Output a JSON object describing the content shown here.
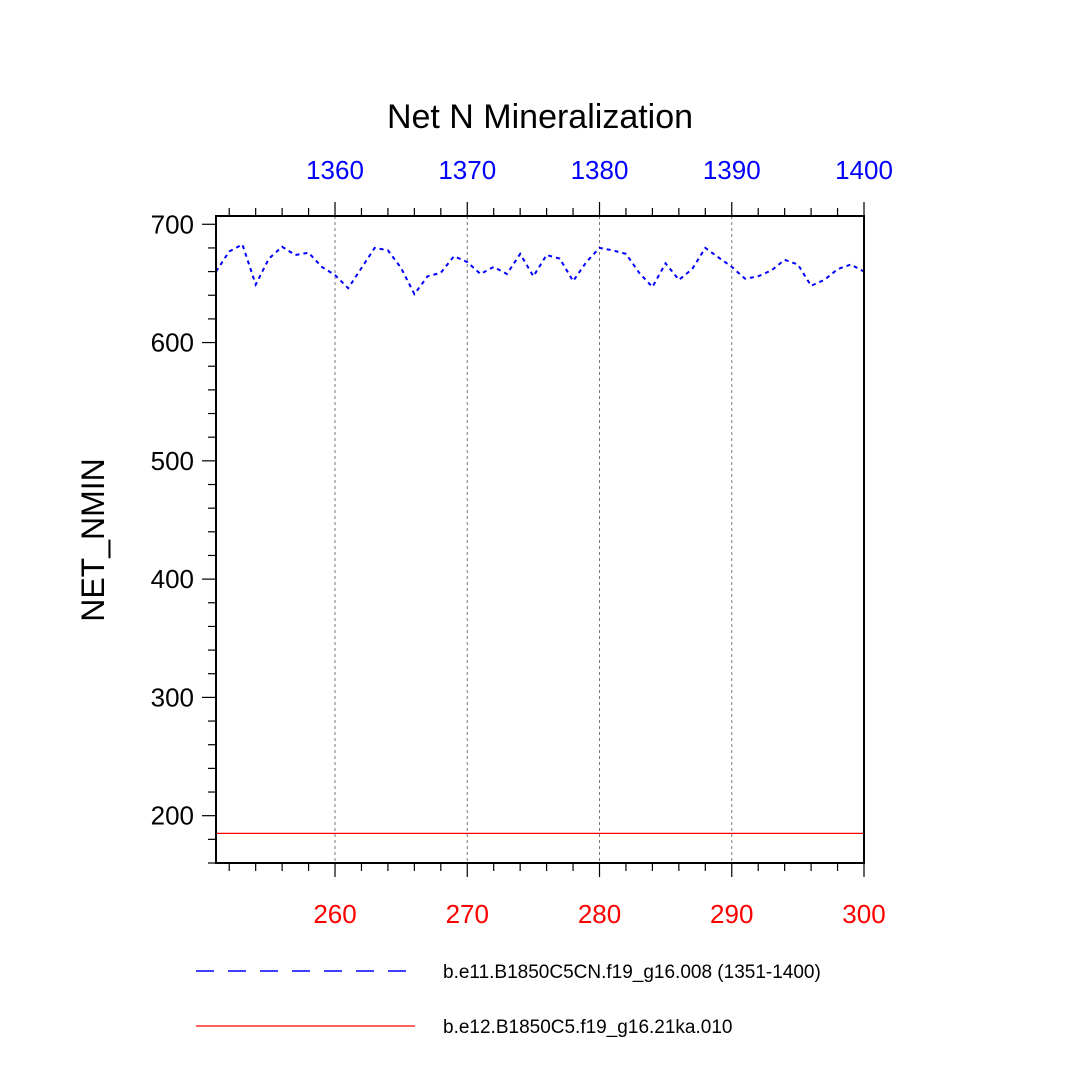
{
  "chart_data": {
    "type": "line",
    "title": "Net N Mineralization",
    "ylabel": "NET_NMIN",
    "xlabel": "",
    "ylim": [
      160,
      707
    ],
    "yticks": [
      200,
      300,
      400,
      500,
      600,
      700
    ],
    "grid": "vertical dashed at major x ticks",
    "bottom_axis": {
      "color": "#ff0000",
      "range": [
        251,
        300
      ],
      "ticks": [
        260,
        270,
        280,
        290,
        300
      ],
      "minor_step": 2
    },
    "top_axis": {
      "color": "#0000ff",
      "range": [
        1351,
        1400
      ],
      "ticks": [
        1360,
        1370,
        1380,
        1390,
        1400
      ]
    },
    "series": [
      {
        "name": "b.e11.B1850C5CN.f19_g16.008 (1351-1400)",
        "color": "#0000ff",
        "style": "dashed",
        "axis": "top",
        "x": [
          1351,
          1352,
          1353,
          1354,
          1355,
          1356,
          1357,
          1358,
          1359,
          1360,
          1361,
          1362,
          1363,
          1364,
          1365,
          1366,
          1367,
          1368,
          1369,
          1370,
          1371,
          1372,
          1373,
          1374,
          1375,
          1376,
          1377,
          1378,
          1379,
          1380,
          1381,
          1382,
          1383,
          1384,
          1385,
          1386,
          1387,
          1388,
          1389,
          1390,
          1391,
          1392,
          1393,
          1394,
          1395,
          1396,
          1397,
          1398,
          1399,
          1400
        ],
        "values": [
          660,
          677,
          683,
          649,
          671,
          681,
          674,
          676,
          664,
          657,
          646,
          663,
          680,
          678,
          663,
          641,
          656,
          659,
          673,
          668,
          658,
          664,
          658,
          675,
          656,
          674,
          671,
          652,
          668,
          680,
          678,
          675,
          659,
          647,
          667,
          653,
          662,
          680,
          672,
          664,
          654,
          656,
          661,
          670,
          666,
          648,
          653,
          662,
          666,
          660
        ]
      },
      {
        "name": "b.e12.B1850C5.f19_g16.21ka.010",
        "color": "#ff0000",
        "style": "solid",
        "axis": "bottom",
        "x": [
          251,
          300
        ],
        "values": [
          185,
          185
        ]
      }
    ],
    "legend": "bottom"
  }
}
